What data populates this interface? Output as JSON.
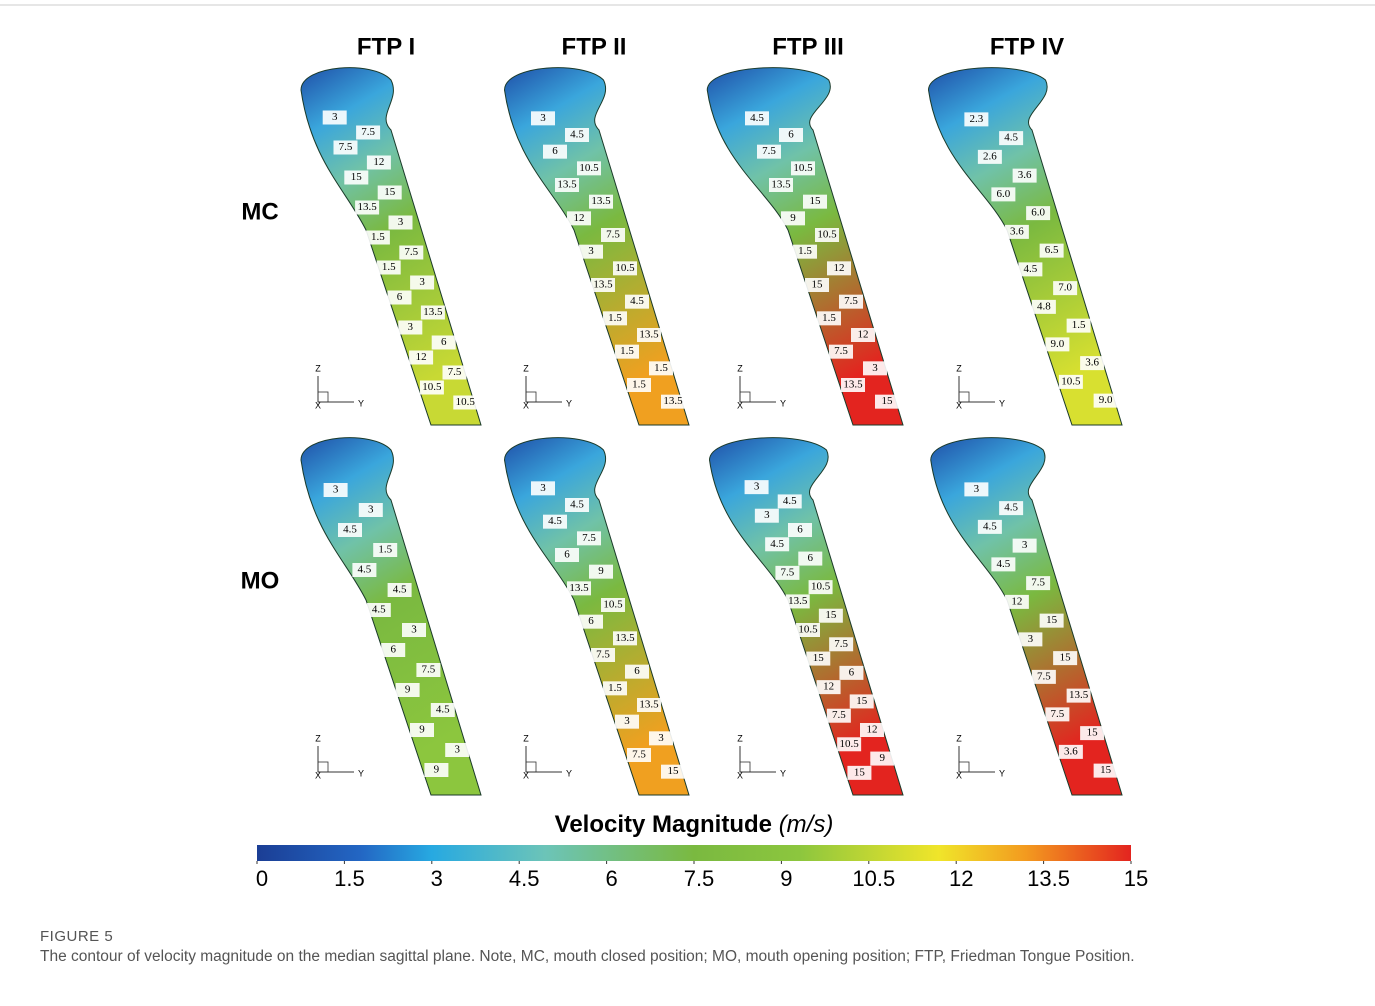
{
  "figure": {
    "columns": [
      "FTP I",
      "FTP II",
      "FTP III",
      "FTP IV"
    ],
    "axes_triad": [
      "Z",
      "X",
      "Y"
    ],
    "rows": [
      {
        "label": "MC",
        "panels": [
          {
            "contour_labels": [
              "3",
              "7.5",
              "7.5",
              "12",
              "15",
              "15",
              "13.5",
              "3",
              "1.5",
              "7.5",
              "1.5",
              "3",
              "6",
              "13.5",
              "3",
              "6",
              "12",
              "7.5",
              "10.5",
              "10.5"
            ]
          },
          {
            "contour_labels": [
              "3",
              "4.5",
              "6",
              "10.5",
              "13.5",
              "13.5",
              "12",
              "7.5",
              "3",
              "10.5",
              "13.5",
              "4.5",
              "1.5",
              "13.5",
              "1.5",
              "1.5",
              "1.5",
              "13.5"
            ]
          },
          {
            "contour_labels": [
              "4.5",
              "6",
              "7.5",
              "10.5",
              "13.5",
              "15",
              "9",
              "10.5",
              "1.5",
              "12",
              "15",
              "7.5",
              "1.5",
              "12",
              "7.5",
              "3",
              "13.5",
              "15"
            ]
          },
          {
            "contour_labels": [
              "2.3",
              "4.5",
              "2.6",
              "3.6",
              "6.0",
              "6.0",
              "3.6",
              "6.5",
              "4.5",
              "7.0",
              "4.8",
              "1.5",
              "9.0",
              "3.6",
              "10.5",
              "9.0"
            ]
          }
        ]
      },
      {
        "label": "MO",
        "panels": [
          {
            "contour_labels": [
              "3",
              "3",
              "4.5",
              "1.5",
              "4.5",
              "4.5",
              "4.5",
              "3",
              "6",
              "7.5",
              "9",
              "4.5",
              "9",
              "3",
              "9"
            ]
          },
          {
            "contour_labels": [
              "3",
              "4.5",
              "4.5",
              "7.5",
              "6",
              "9",
              "13.5",
              "10.5",
              "6",
              "13.5",
              "7.5",
              "6",
              "1.5",
              "13.5",
              "3",
              "3",
              "7.5",
              "15"
            ]
          },
          {
            "contour_labels": [
              "3",
              "4.5",
              "3",
              "6",
              "4.5",
              "6",
              "7.5",
              "10.5",
              "13.5",
              "15",
              "10.5",
              "7.5",
              "15",
              "6",
              "12",
              "15",
              "7.5",
              "12",
              "10.5",
              "9",
              "15"
            ]
          },
          {
            "contour_labels": [
              "3",
              "4.5",
              "4.5",
              "3",
              "4.5",
              "7.5",
              "12",
              "15",
              "3",
              "15",
              "7.5",
              "13.5",
              "7.5",
              "15",
              "3.6",
              "15"
            ]
          }
        ]
      }
    ],
    "colorbar": {
      "title": "Velocity Magnitude",
      "unit": "(m/s)",
      "lim": [
        0,
        15
      ],
      "ticks": [
        0,
        1.5,
        3,
        4.5,
        6,
        7.5,
        9,
        10.5,
        12,
        13.5,
        15
      ]
    },
    "caption": {
      "label": "FIGURE 5",
      "text": "The contour of velocity magnitude on the median sagittal plane. Note, MC, mouth closed position; MO, mouth opening position; FTP, Friedman Tongue Position."
    }
  }
}
